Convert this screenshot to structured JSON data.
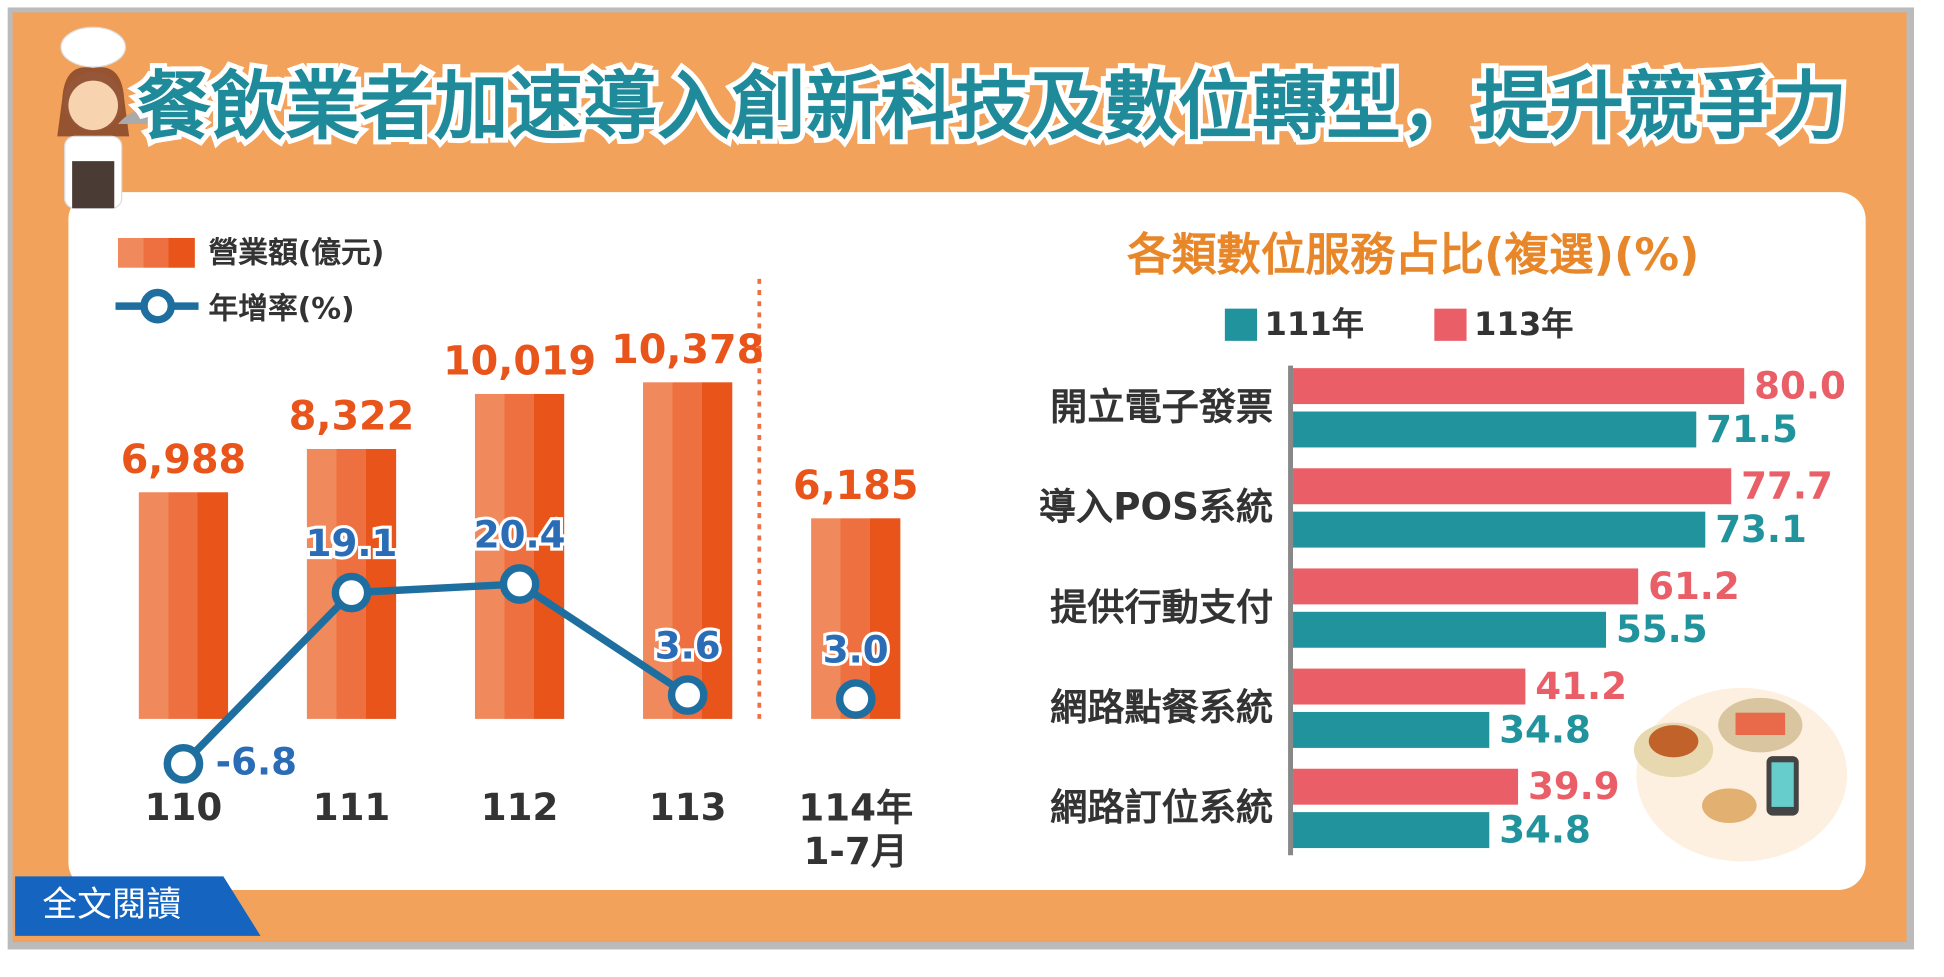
{
  "title": "餐飲業者加速導入創新科技及數位轉型，提升競爭力",
  "button_text": "全文閱讀",
  "chart_data": [
    {
      "type": "bar_line",
      "categories": [
        "110",
        "111",
        "112",
        "113",
        "114年\n1-7月"
      ],
      "separator_before": 4,
      "ylim": [
        0,
        12000
      ],
      "y2lim": [
        -10,
        50
      ],
      "series": [
        {
          "name": "營業額(億元)",
          "color": "#ee7040",
          "values": [
            6988,
            8322,
            10019,
            10378,
            6185
          ],
          "value_labels": [
            "6,988",
            "8,322",
            "10,019",
            "10,378",
            "6,185"
          ]
        },
        {
          "name": "年增率(%)",
          "color": "#1e6fa0",
          "axis": "y2",
          "values": [
            -6.8,
            19.1,
            20.4,
            3.6,
            3.0
          ],
          "value_labels": [
            "-6.8",
            "19.1",
            "20.4",
            "3.6",
            "3.0"
          ]
        }
      ]
    },
    {
      "type": "hbar",
      "title": "各類數位服務占比(複選)(%)",
      "categories": [
        "開立電子發票",
        "導入POS系統",
        "提供行動支付",
        "網路點餐系統",
        "網路訂位系統"
      ],
      "xlim": [
        0,
        100
      ],
      "series": [
        {
          "name": "111年",
          "color": "#21939c",
          "values": [
            71.5,
            73.1,
            55.5,
            34.8,
            34.8
          ],
          "value_labels": [
            "71.5",
            "73.1",
            "55.5",
            "34.8",
            "34.8"
          ]
        },
        {
          "name": "113年",
          "color": "#ea5f67",
          "values": [
            80.0,
            77.7,
            61.2,
            41.2,
            39.9
          ],
          "value_labels": [
            "80.0",
            "77.7",
            "61.2",
            "41.2",
            "39.9"
          ]
        }
      ]
    }
  ]
}
